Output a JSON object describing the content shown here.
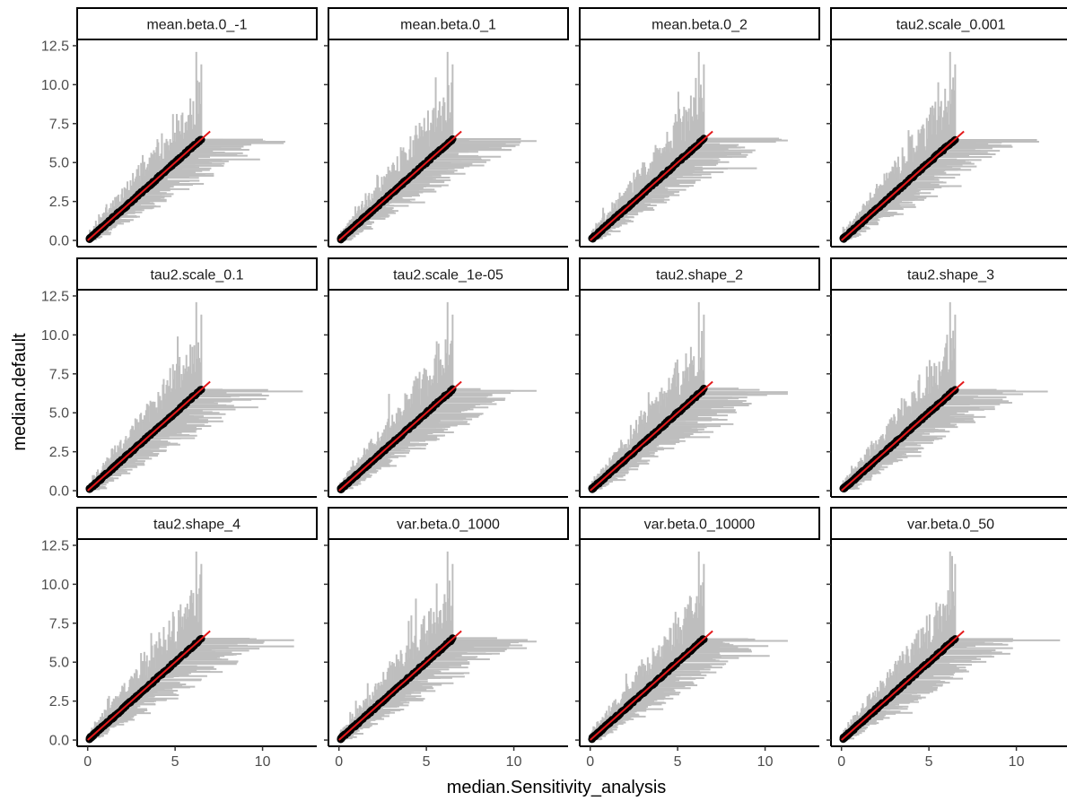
{
  "chart_data": {
    "type": "scatter",
    "layout": "faceted 3x4 grid, shared axes",
    "xlabel": "median.Sensitivity_analysis",
    "ylabel": "median.default",
    "xlim": [
      -0.6,
      13.1
    ],
    "ylim": [
      -0.4,
      12.9
    ],
    "x_ticks": [
      0,
      5,
      10
    ],
    "y_ticks": [
      0.0,
      2.5,
      5.0,
      7.5,
      10.0,
      12.5
    ],
    "x_tick_labels": [
      "0",
      "5",
      "10"
    ],
    "y_tick_labels": [
      "0.0",
      "2.5",
      "5.0",
      "7.5",
      "10.0",
      "12.5"
    ],
    "grid": false,
    "reference_line": {
      "description": "identity line y = x",
      "color": "#e41a1c",
      "from": 0,
      "to": 7
    },
    "point_color": "#000000",
    "interval_color": "#bebebe",
    "series": [
      {
        "panel": "mean.beta.0_-1",
        "points_x_range": [
          0.1,
          6.5
        ],
        "max_vertical_interval": 12.1,
        "max_horizontal_interval": 11.3
      },
      {
        "panel": "mean.beta.0_1",
        "points_x_range": [
          0.1,
          6.5
        ],
        "max_vertical_interval": 12.1,
        "max_horizontal_interval": 11.3
      },
      {
        "panel": "mean.beta.0_2",
        "points_x_range": [
          0.1,
          6.5
        ],
        "max_vertical_interval": 12.1,
        "max_horizontal_interval": 11.3
      },
      {
        "panel": "tau2.scale_0.001",
        "points_x_range": [
          0.1,
          6.5
        ],
        "max_vertical_interval": 12.1,
        "max_horizontal_interval": 11.3
      },
      {
        "panel": "tau2.scale_0.1",
        "points_x_range": [
          0.1,
          6.5
        ],
        "max_vertical_interval": 12.1,
        "max_horizontal_interval": 12.3
      },
      {
        "panel": "tau2.scale_1e-05",
        "points_x_range": [
          0.1,
          6.5
        ],
        "max_vertical_interval": 12.1,
        "max_horizontal_interval": 11.3
      },
      {
        "panel": "tau2.shape_2",
        "points_x_range": [
          0.1,
          6.5
        ],
        "max_vertical_interval": 12.1,
        "max_horizontal_interval": 11.3
      },
      {
        "panel": "tau2.shape_3",
        "points_x_range": [
          0.1,
          6.5
        ],
        "max_vertical_interval": 12.1,
        "max_horizontal_interval": 11.8
      },
      {
        "panel": "tau2.shape_4",
        "points_x_range": [
          0.1,
          6.5
        ],
        "max_vertical_interval": 12.1,
        "max_horizontal_interval": 11.8
      },
      {
        "panel": "var.beta.0_1000",
        "points_x_range": [
          0.1,
          6.5
        ],
        "max_vertical_interval": 12.1,
        "max_horizontal_interval": 11.3
      },
      {
        "panel": "var.beta.0_10000",
        "points_x_range": [
          0.1,
          6.5
        ],
        "max_vertical_interval": 12.1,
        "max_horizontal_interval": 11.3
      },
      {
        "panel": "var.beta.0_50",
        "points_x_range": [
          0.1,
          6.5
        ],
        "max_vertical_interval": 12.1,
        "max_horizontal_interval": 12.5
      }
    ]
  }
}
